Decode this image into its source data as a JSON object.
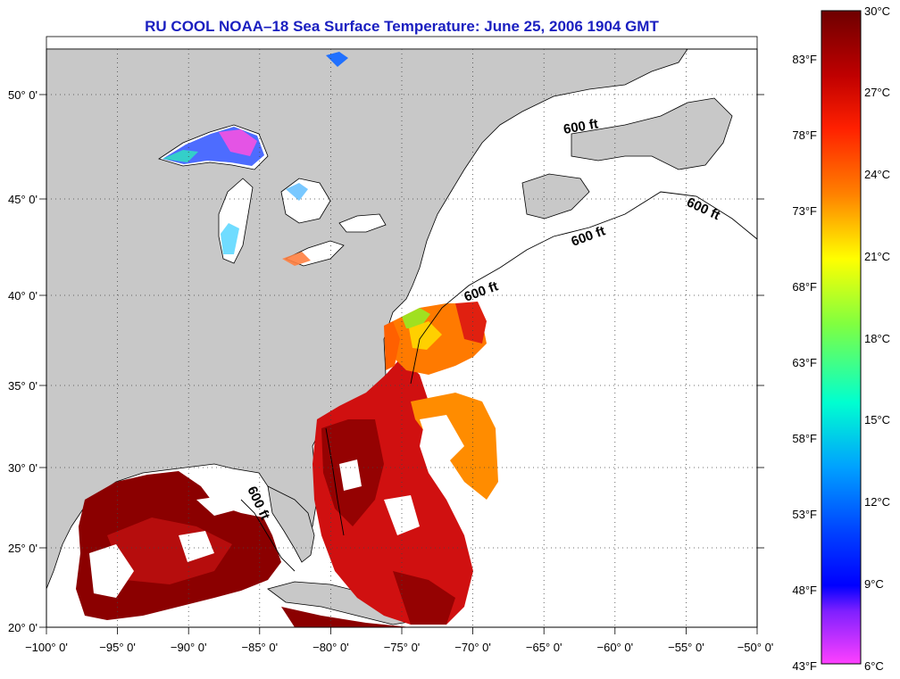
{
  "title": "RU COOL  NOAA–18  Sea Surface Temperature:  June 25, 2006 1904 GMT",
  "axes": {
    "lon_ticks": [
      "−100° 0'",
      "−95° 0'",
      "−90° 0'",
      "−85° 0'",
      "−80° 0'",
      "−75° 0'",
      "−70° 0'",
      "−65° 0'",
      "−60° 0'",
      "−55° 0'",
      "−50° 0'"
    ],
    "lat_ticks": [
      "20° 0'",
      "25° 0'",
      "30° 0'",
      "35° 0'",
      "40° 0'",
      "45° 0'",
      "50° 0'"
    ],
    "lon_range": [
      -100,
      -50
    ],
    "lat_range": [
      20,
      52.5
    ],
    "grid": "dotted"
  },
  "depth_contour_labels": [
    "600 ft",
    "600 ft",
    "600 ft",
    "600 ft",
    "600 ft"
  ],
  "colorbar": {
    "fahrenheit_labels": [
      "83°F",
      "78°F",
      "73°F",
      "68°F",
      "63°F",
      "58°F",
      "53°F",
      "48°F",
      "43°F"
    ],
    "celsius_labels": [
      "30°C",
      "27°C",
      "24°C",
      "21°C",
      "18°C",
      "15°C",
      "12°C",
      "9°C",
      "6°C"
    ],
    "range_c": [
      6,
      30
    ]
  },
  "colors": {
    "land": "#c8c8c8",
    "ocean_no_data": "#ffffff",
    "title": "#1a1fc0",
    "sst_warm": "#8b0000",
    "sst_mid": "#ff8c00",
    "sst_cool": "#00c8ff",
    "sst_cold": "#ff40ff"
  }
}
